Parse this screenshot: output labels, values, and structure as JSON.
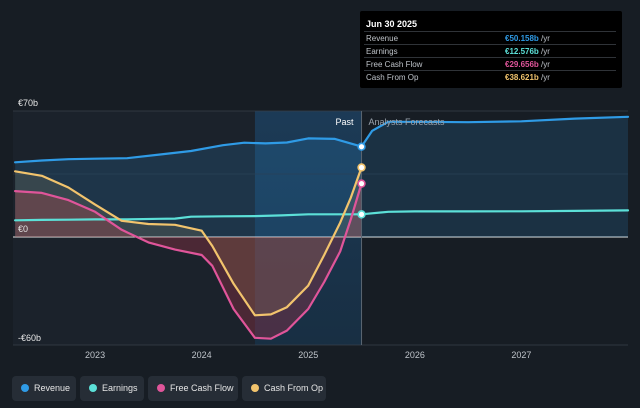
{
  "tooltip": {
    "date": "Jun 30 2025",
    "rows": [
      {
        "label": "Revenue",
        "value": "€50.158b",
        "unit": "/yr",
        "color": "#2f9be6"
      },
      {
        "label": "Earnings",
        "value": "€12.576b",
        "unit": "/yr",
        "color": "#5ce0d8"
      },
      {
        "label": "Free Cash Flow",
        "value": "€29.656b",
        "unit": "/yr",
        "color": "#e0559a"
      },
      {
        "label": "Cash From Op",
        "value": "€38.621b",
        "unit": "/yr",
        "color": "#f2c46d"
      }
    ]
  },
  "legend": [
    {
      "label": "Revenue",
      "color": "#2f9be6"
    },
    {
      "label": "Earnings",
      "color": "#5ce0d8"
    },
    {
      "label": "Free Cash Flow",
      "color": "#e0559a"
    },
    {
      "label": "Cash From Op",
      "color": "#f2c46d"
    }
  ],
  "chart_data": {
    "type": "line",
    "y_ticks": [
      {
        "value": 70,
        "label": "€70b"
      },
      {
        "value": 0,
        "label": "€0"
      },
      {
        "value": -60,
        "label": "-€60b"
      }
    ],
    "x_ticks": [
      {
        "value": 2023,
        "label": "2023"
      },
      {
        "value": 2024,
        "label": "2024"
      },
      {
        "value": 2025,
        "label": "2025"
      },
      {
        "value": 2026,
        "label": "2026"
      },
      {
        "value": 2027,
        "label": "2027"
      }
    ],
    "x_range": [
      2022.23,
      2028.0
    ],
    "y_range": [
      -60,
      70
    ],
    "past_label": "Past",
    "forecast_label": "Analysts Forecasts",
    "divider_x": 2025.5,
    "highlight_start_x": 2024.5,
    "series": [
      {
        "name": "Revenue",
        "color": "#2f9be6",
        "points": [
          [
            2022.25,
            41.5
          ],
          [
            2022.5,
            42.5
          ],
          [
            2022.75,
            43.2
          ],
          [
            2023.0,
            43.5
          ],
          [
            2023.3,
            43.8
          ],
          [
            2023.6,
            45.8
          ],
          [
            2023.9,
            47.8
          ],
          [
            2024.2,
            51.0
          ],
          [
            2024.4,
            52.4
          ],
          [
            2024.6,
            52.0
          ],
          [
            2024.8,
            52.5
          ],
          [
            2025.0,
            54.8
          ],
          [
            2025.25,
            54.5
          ],
          [
            2025.5,
            50.2
          ],
          [
            2025.6,
            59.0
          ],
          [
            2025.75,
            64.0
          ],
          [
            2026.0,
            64.0
          ],
          [
            2026.5,
            63.8
          ],
          [
            2027.0,
            64.3
          ],
          [
            2027.5,
            65.8
          ],
          [
            2028.0,
            66.8
          ]
        ]
      },
      {
        "name": "Earnings",
        "color": "#5ce0d8",
        "points": [
          [
            2022.25,
            9.3
          ],
          [
            2022.5,
            9.5
          ],
          [
            2022.75,
            9.6
          ],
          [
            2023.0,
            9.8
          ],
          [
            2023.3,
            9.8
          ],
          [
            2023.6,
            10.1
          ],
          [
            2023.75,
            10.2
          ],
          [
            2023.9,
            11.3
          ],
          [
            2024.2,
            11.5
          ],
          [
            2024.5,
            11.6
          ],
          [
            2024.75,
            12.0
          ],
          [
            2025.0,
            12.6
          ],
          [
            2025.25,
            12.6
          ],
          [
            2025.5,
            12.6
          ],
          [
            2025.75,
            14.0
          ],
          [
            2026.0,
            14.2
          ],
          [
            2026.5,
            14.2
          ],
          [
            2027.0,
            14.3
          ],
          [
            2027.5,
            14.5
          ],
          [
            2028.0,
            14.8
          ]
        ]
      },
      {
        "name": "Free Cash Flow",
        "color": "#e0559a",
        "points": [
          [
            2022.25,
            25.5
          ],
          [
            2022.5,
            24.5
          ],
          [
            2022.75,
            20.5
          ],
          [
            2023.0,
            14.0
          ],
          [
            2023.25,
            4.0
          ],
          [
            2023.5,
            -3.0
          ],
          [
            2023.75,
            -7.0
          ],
          [
            2024.0,
            -10.0
          ],
          [
            2024.1,
            -16.0
          ],
          [
            2024.3,
            -40.0
          ],
          [
            2024.5,
            -56.0
          ],
          [
            2024.65,
            -56.5
          ],
          [
            2024.8,
            -52.0
          ],
          [
            2025.0,
            -40.0
          ],
          [
            2025.15,
            -25.0
          ],
          [
            2025.3,
            -8.0
          ],
          [
            2025.4,
            10.0
          ],
          [
            2025.5,
            29.7
          ]
        ]
      },
      {
        "name": "Cash From Op",
        "color": "#f2c46d",
        "points": [
          [
            2022.25,
            36.5
          ],
          [
            2022.5,
            34.0
          ],
          [
            2022.75,
            27.5
          ],
          [
            2023.0,
            18.0
          ],
          [
            2023.25,
            9.0
          ],
          [
            2023.5,
            7.2
          ],
          [
            2023.75,
            6.8
          ],
          [
            2024.0,
            3.5
          ],
          [
            2024.1,
            -5.0
          ],
          [
            2024.3,
            -26.0
          ],
          [
            2024.5,
            -43.5
          ],
          [
            2024.65,
            -43.0
          ],
          [
            2024.8,
            -39.0
          ],
          [
            2025.0,
            -27.0
          ],
          [
            2025.15,
            -10.0
          ],
          [
            2025.3,
            8.0
          ],
          [
            2025.4,
            22.0
          ],
          [
            2025.5,
            38.6
          ]
        ]
      }
    ],
    "markers": [
      {
        "series": "Revenue",
        "x": 2025.5,
        "y": 50.158
      },
      {
        "series": "Cash From Op",
        "x": 2025.5,
        "y": 38.621
      },
      {
        "series": "Free Cash Flow",
        "x": 2025.5,
        "y": 29.656
      },
      {
        "series": "Earnings",
        "x": 2025.5,
        "y": 12.576
      }
    ]
  }
}
